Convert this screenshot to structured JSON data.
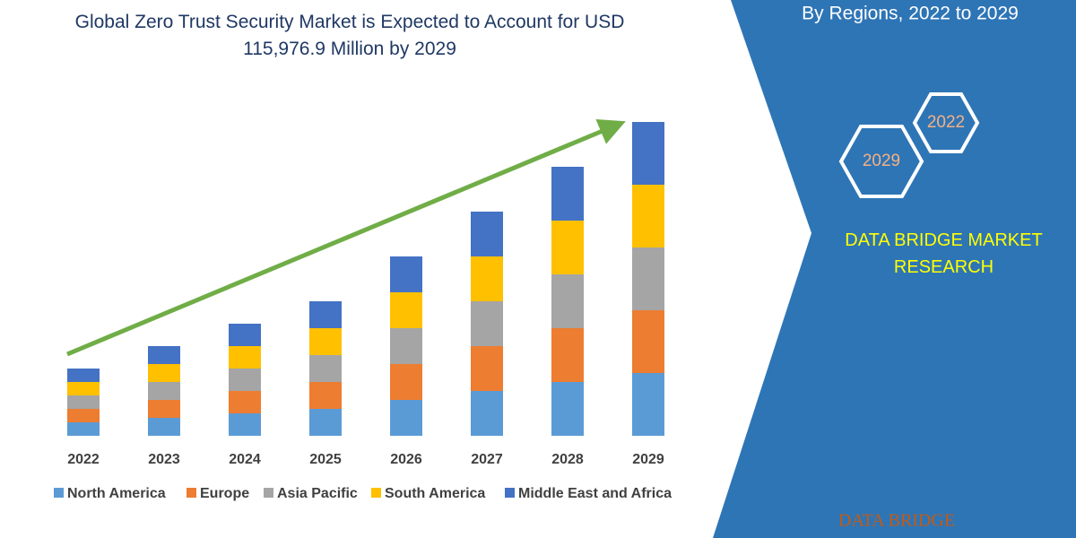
{
  "chart_data": {
    "type": "bar",
    "stacked": true,
    "title": "Global Zero Trust Security Market is Expected to Account for USD 115,976.9 Million by 2029",
    "categories": [
      "2022",
      "2023",
      "2024",
      "2025",
      "2026",
      "2027",
      "2028",
      "2029"
    ],
    "series": [
      {
        "name": "North America",
        "color": "#5b9bd5",
        "values": [
          15,
          20,
          25,
          30,
          40,
          50,
          60,
          70
        ]
      },
      {
        "name": "Europe",
        "color": "#ed7d31",
        "values": [
          15,
          20,
          25,
          30,
          40,
          50,
          60,
          70
        ]
      },
      {
        "name": "Asia Pacific",
        "color": "#a5a5a5",
        "values": [
          15,
          20,
          25,
          30,
          40,
          50,
          60,
          70
        ]
      },
      {
        "name": "South America",
        "color": "#ffc000",
        "values": [
          15,
          20,
          25,
          30,
          40,
          50,
          60,
          70
        ]
      },
      {
        "name": "Middle East and Africa",
        "color": "#4472c4",
        "values": [
          15,
          20,
          25,
          30,
          40,
          50,
          60,
          70
        ]
      }
    ]
  },
  "panel": {
    "subtitle": "By Regions, 2022 to 2029",
    "badges": [
      "2022",
      "2029"
    ],
    "brand": "DATA BRIDGE MARKET RESEARCH",
    "logo": "DATA BRIDGE"
  }
}
